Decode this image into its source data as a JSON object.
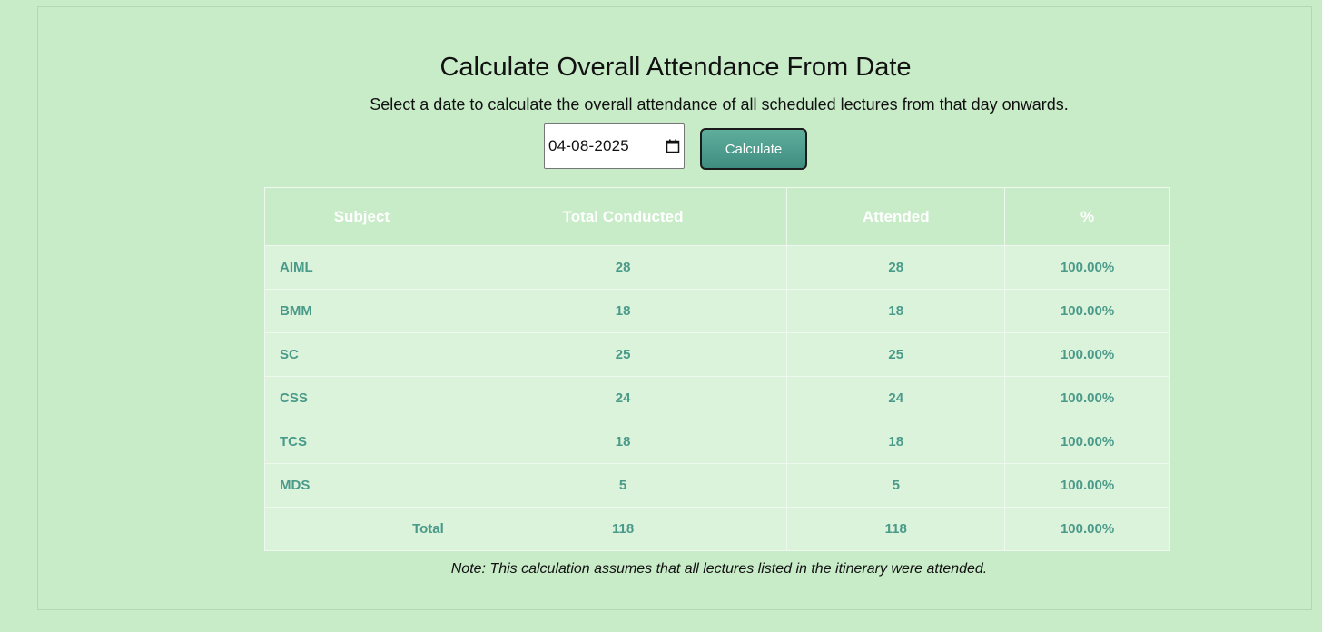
{
  "header": {
    "title": "Calculate Overall Attendance From Date",
    "subtitle": "Select a date to calculate the overall attendance of all scheduled lectures from that day onwards."
  },
  "form": {
    "date_value": "04-08-2025",
    "calculate_label": "Calculate"
  },
  "table": {
    "headers": [
      "Subject",
      "Total Conducted",
      "Attended",
      "%"
    ],
    "rows": [
      {
        "subject": "AIML",
        "conducted": "28",
        "attended": "28",
        "percent": "100.00%"
      },
      {
        "subject": "BMM",
        "conducted": "18",
        "attended": "18",
        "percent": "100.00%"
      },
      {
        "subject": "SC",
        "conducted": "25",
        "attended": "25",
        "percent": "100.00%"
      },
      {
        "subject": "CSS",
        "conducted": "24",
        "attended": "24",
        "percent": "100.00%"
      },
      {
        "subject": "TCS",
        "conducted": "18",
        "attended": "18",
        "percent": "100.00%"
      },
      {
        "subject": "MDS",
        "conducted": "5",
        "attended": "5",
        "percent": "100.00%"
      }
    ],
    "total": {
      "label": "Total",
      "conducted": "118",
      "attended": "118",
      "percent": "100.00%"
    }
  },
  "note": "Note: This calculation assumes that all lectures listed in the itinerary were attended.",
  "colors": {
    "background": "#c8ebc8",
    "cell_text": "#4a9a8a",
    "button": "#4f9e8e"
  },
  "icons": {
    "date_picker": "calendar-icon"
  }
}
